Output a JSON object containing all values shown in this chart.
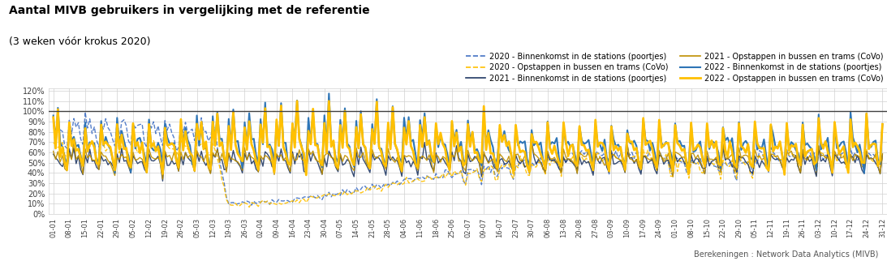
{
  "title_line1": "Aantal MIVB gebruikers in vergelijking met de referentie",
  "title_line2": "(3 weken vóór krokus 2020)",
  "background_color": "#ffffff",
  "plot_bg_color": "#ffffff",
  "grid_color": "#d0d0d0",
  "ylim": [
    0.0,
    1.22
  ],
  "yticks": [
    0.0,
    0.1,
    0.2,
    0.3,
    0.4,
    0.5,
    0.6,
    0.7,
    0.8,
    0.9,
    1.0,
    1.1,
    1.2
  ],
  "ytick_labels": [
    "0%",
    "10%",
    "20%",
    "30%",
    "40%",
    "50%",
    "60%",
    "70%",
    "80%",
    "90%",
    "100%",
    "110%",
    "120%"
  ],
  "legend_entries": [
    {
      "label": "2020 - Binnenkomst in de stations (poortjes)",
      "color": "#4472c4",
      "linestyle": "dashed",
      "linewidth": 1.0
    },
    {
      "label": "2020 - Opstappen in bussen en trams (CoVo)",
      "color": "#ffc000",
      "linestyle": "dashed",
      "linewidth": 1.0
    },
    {
      "label": "2021 - Binnenkomst in de stations (poortjes)",
      "color": "#203864",
      "linestyle": "solid",
      "linewidth": 1.0
    },
    {
      "label": "2021 - Opstappen in bussen en trams (CoVo)",
      "color": "#bf8f00",
      "linestyle": "solid",
      "linewidth": 1.0
    },
    {
      "label": "2022 - Binnenkomst in de stations (poortjes)",
      "color": "#2e75b6",
      "linestyle": "solid",
      "linewidth": 1.5
    },
    {
      "label": "2022 - Opstappen in bussen en trams (CoVo)",
      "color": "#ffc000",
      "linestyle": "solid",
      "linewidth": 2.0
    }
  ],
  "footer": "Berekeningen : Network Data Analytics (MIVB)",
  "xtick_positions": [
    0,
    7,
    14,
    21,
    28,
    35,
    42,
    49,
    56,
    63,
    70,
    77,
    84,
    91,
    98,
    105,
    112,
    119,
    126,
    133,
    140,
    147,
    154,
    161,
    168,
    175,
    182,
    189,
    196,
    203,
    210,
    217,
    224,
    231,
    238,
    245,
    252,
    259,
    266,
    273,
    280,
    287,
    294,
    301,
    308,
    315,
    322,
    329,
    336,
    343,
    350,
    357,
    364
  ],
  "xtick_labels": [
    "01-01",
    "08-01",
    "15-01",
    "22-01",
    "29-01",
    "05-02",
    "12-02",
    "19-02",
    "26-02",
    "05-03",
    "12-03",
    "19-03",
    "26-03",
    "02-04",
    "09-04",
    "16-04",
    "23-04",
    "30-04",
    "07-05",
    "14-05",
    "21-05",
    "28-05",
    "04-06",
    "11-06",
    "18-06",
    "25-06",
    "02-07",
    "09-07",
    "16-07",
    "23-07",
    "30-07",
    "06-08",
    "13-08",
    "20-08",
    "27-08",
    "03-09",
    "10-09",
    "17-09",
    "24-09",
    "01-10",
    "08-10",
    "15-10",
    "22-10",
    "29-10",
    "05-11",
    "12-11",
    "19-11",
    "26-11",
    "03-12",
    "10-12",
    "17-12",
    "24-12",
    "31-12"
  ]
}
